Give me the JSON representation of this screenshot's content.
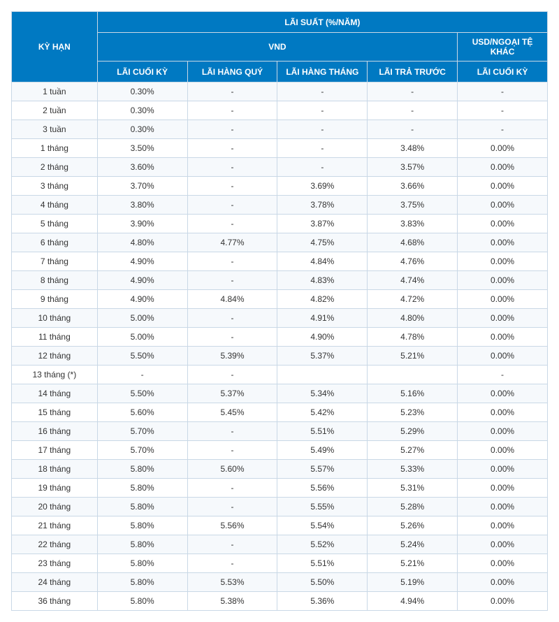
{
  "table": {
    "type": "table",
    "header": {
      "term_label": "KỲ HẠN",
      "rate_group_label": "LÃI SUẤT (%/NĂM)",
      "vnd_label": "VND",
      "usd_label": "USD/NGOẠI TỆ KHÁC",
      "col_1": "LÃI CUỐI KỲ",
      "col_2": "LÃI HÀNG QUÝ",
      "col_3": "LÃI HÀNG THÁNG",
      "col_4": "LÃI TRẢ TRƯỚC",
      "col_5": "LÃI CUỐI KỲ"
    },
    "colors": {
      "header_bg": "#0079c2",
      "header_text": "#ffffff",
      "border": "#c9d8e6",
      "row_odd_bg": "#f6f9fc",
      "row_even_bg": "#ffffff",
      "cell_text": "#333333"
    },
    "columns": [
      "KỲ HẠN",
      "LÃI CUỐI KỲ",
      "LÃI HÀNG QUÝ",
      "LÃI HÀNG THÁNG",
      "LÃI TRẢ TRƯỚC",
      "LÃI CUỐI KỲ"
    ],
    "rows": [
      [
        "1 tuần",
        "0.30%",
        "-",
        "-",
        "-",
        "-"
      ],
      [
        "2 tuần",
        "0.30%",
        "-",
        "-",
        "-",
        "-"
      ],
      [
        "3 tuần",
        "0.30%",
        "-",
        "-",
        "-",
        "-"
      ],
      [
        "1 tháng",
        "3.50%",
        "-",
        "-",
        "3.48%",
        "0.00%"
      ],
      [
        "2 tháng",
        "3.60%",
        "-",
        "-",
        "3.57%",
        "0.00%"
      ],
      [
        "3 tháng",
        "3.70%",
        "-",
        "3.69%",
        "3.66%",
        "0.00%"
      ],
      [
        "4 tháng",
        "3.80%",
        "-",
        "3.78%",
        "3.75%",
        "0.00%"
      ],
      [
        "5 tháng",
        "3.90%",
        "-",
        "3.87%",
        "3.83%",
        "0.00%"
      ],
      [
        "6 tháng",
        "4.80%",
        "4.77%",
        "4.75%",
        "4.68%",
        "0.00%"
      ],
      [
        "7 tháng",
        "4.90%",
        "-",
        "4.84%",
        "4.76%",
        "0.00%"
      ],
      [
        "8 tháng",
        "4.90%",
        "-",
        "4.83%",
        "4.74%",
        "0.00%"
      ],
      [
        "9 tháng",
        "4.90%",
        "4.84%",
        "4.82%",
        "4.72%",
        "0.00%"
      ],
      [
        "10 tháng",
        "5.00%",
        "-",
        "4.91%",
        "4.80%",
        "0.00%"
      ],
      [
        "11 tháng",
        "5.00%",
        "-",
        "4.90%",
        "4.78%",
        "0.00%"
      ],
      [
        "12 tháng",
        "5.50%",
        "5.39%",
        "5.37%",
        "5.21%",
        "0.00%"
      ],
      [
        "13 tháng (*)",
        "-",
        "-",
        "",
        "",
        "-"
      ],
      [
        "14 tháng",
        "5.50%",
        "5.37%",
        "5.34%",
        "5.16%",
        "0.00%"
      ],
      [
        "15 tháng",
        "5.60%",
        "5.45%",
        "5.42%",
        "5.23%",
        "0.00%"
      ],
      [
        "16 tháng",
        "5.70%",
        "-",
        "5.51%",
        "5.29%",
        "0.00%"
      ],
      [
        "17 tháng",
        "5.70%",
        "-",
        "5.49%",
        "5.27%",
        "0.00%"
      ],
      [
        "18 tháng",
        "5.80%",
        "5.60%",
        "5.57%",
        "5.33%",
        "0.00%"
      ],
      [
        "19 tháng",
        "5.80%",
        "-",
        "5.56%",
        "5.31%",
        "0.00%"
      ],
      [
        "20 tháng",
        "5.80%",
        "-",
        "5.55%",
        "5.28%",
        "0.00%"
      ],
      [
        "21 tháng",
        "5.80%",
        "5.56%",
        "5.54%",
        "5.26%",
        "0.00%"
      ],
      [
        "22 tháng",
        "5.80%",
        "-",
        "5.52%",
        "5.24%",
        "0.00%"
      ],
      [
        "23 tháng",
        "5.80%",
        "-",
        "5.51%",
        "5.21%",
        "0.00%"
      ],
      [
        "24 tháng",
        "5.80%",
        "5.53%",
        "5.50%",
        "5.19%",
        "0.00%"
      ],
      [
        "36 tháng",
        "5.80%",
        "5.38%",
        "5.36%",
        "4.94%",
        "0.00%"
      ]
    ]
  }
}
